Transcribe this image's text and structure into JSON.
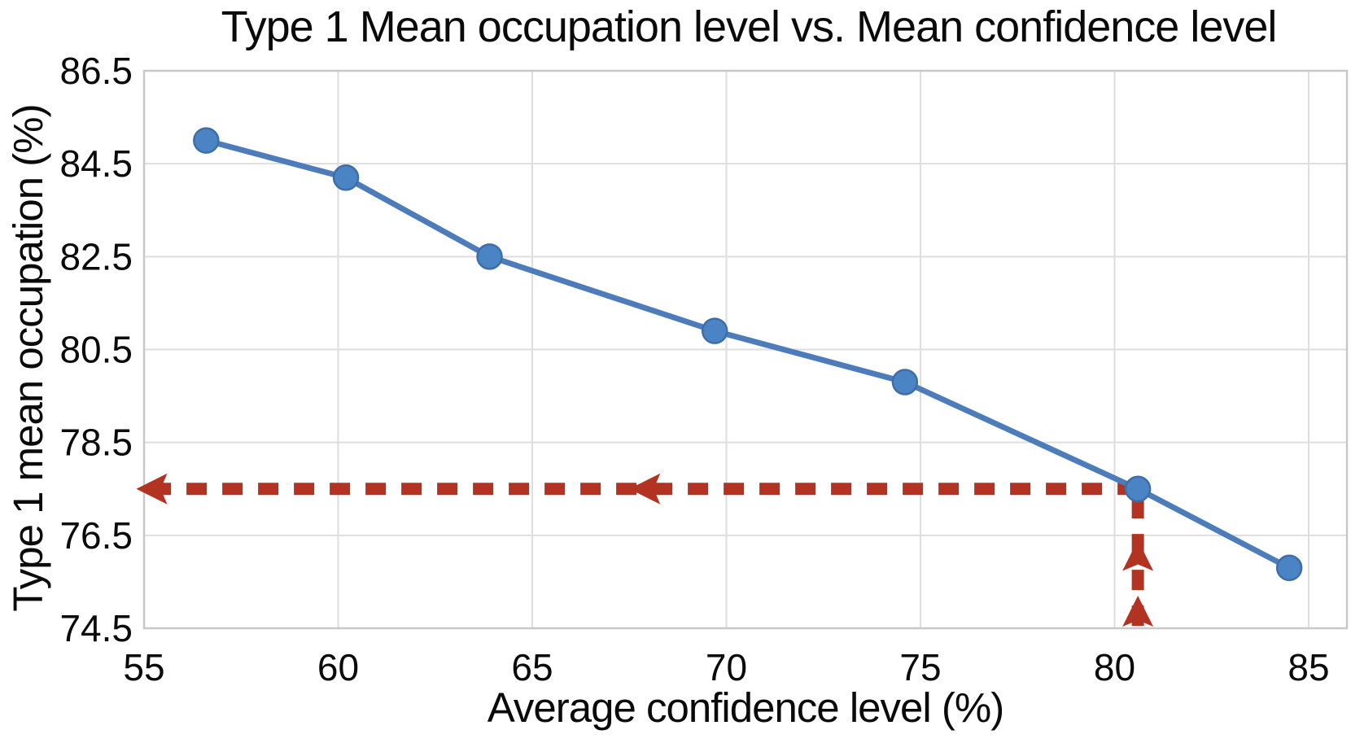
{
  "chart_data": {
    "type": "line",
    "title": "Type 1 Mean occupation level vs. Mean confidence level",
    "xlabel": "Average confidence level (%)",
    "ylabel": "Type 1 mean occupation (%)",
    "x": [
      56.6,
      60.2,
      63.9,
      69.7,
      74.6,
      80.6,
      84.5
    ],
    "y": [
      85.0,
      84.2,
      82.5,
      80.9,
      79.8,
      77.5,
      75.8
    ],
    "xlim": [
      55,
      86
    ],
    "ylim": [
      74.5,
      86.5
    ],
    "x_ticks": [
      "55",
      "60",
      "65",
      "70",
      "75",
      "80",
      "85"
    ],
    "y_ticks": [
      "86.5",
      "84.5",
      "82.5",
      "80.5",
      "78.5",
      "76.5",
      "74.5"
    ],
    "grid": true,
    "legend": "none",
    "marker": "circle",
    "annotation": {
      "target": {
        "x": 80.6,
        "y": 77.5
      },
      "style": "dashed",
      "h_arrow": {
        "y": 77.5,
        "x_start": 80.6,
        "x_end": 54.8,
        "direction": "left",
        "arrowhead_x": [
          54.8,
          67.5
        ]
      },
      "v_arrow": {
        "x": 80.6,
        "y_start": 77.3,
        "y_end": 74.5,
        "direction": "up",
        "arrowhead_y": [
          76.4,
          75.2
        ]
      }
    },
    "colors": {
      "line": "#4d7cba",
      "marker_fill": "#4b84c4",
      "marker_edge": "#3d6ea9",
      "grid": "#dedede",
      "axis": "#c8c8c8",
      "annotation": "#b23322",
      "text": "#0a0a0a",
      "background": "#ffffff"
    }
  }
}
